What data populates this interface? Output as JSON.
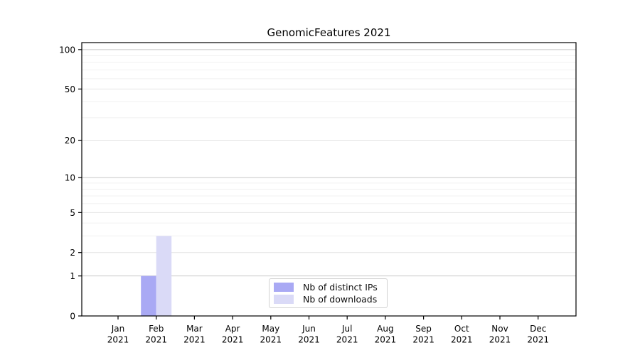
{
  "chart_data": {
    "type": "bar",
    "title": "GenomicFeatures 2021",
    "categories": [
      "Jan 2021",
      "Feb 2021",
      "Mar 2021",
      "Apr 2021",
      "May 2021",
      "Jun 2021",
      "Jul 2021",
      "Aug 2021",
      "Sep 2021",
      "Oct 2021",
      "Nov 2021",
      "Dec 2021"
    ],
    "series": [
      {
        "name": "Nb of distinct IPs",
        "color": "#a9a9f4",
        "values": [
          0,
          1,
          0,
          0,
          0,
          0,
          0,
          0,
          0,
          0,
          0,
          0
        ]
      },
      {
        "name": "Nb of downloads",
        "color": "#dadaf7",
        "values": [
          0,
          3,
          0,
          0,
          0,
          0,
          0,
          0,
          0,
          0,
          0,
          0
        ]
      }
    ],
    "xlabel": "",
    "ylabel": "",
    "y_ticks": [
      0,
      1,
      2,
      5,
      10,
      20,
      50,
      100
    ],
    "ylim": [
      0,
      113
    ],
    "yscale": "log1p",
    "grid": "horizontal",
    "legend_position": "inside-bottom-center"
  }
}
